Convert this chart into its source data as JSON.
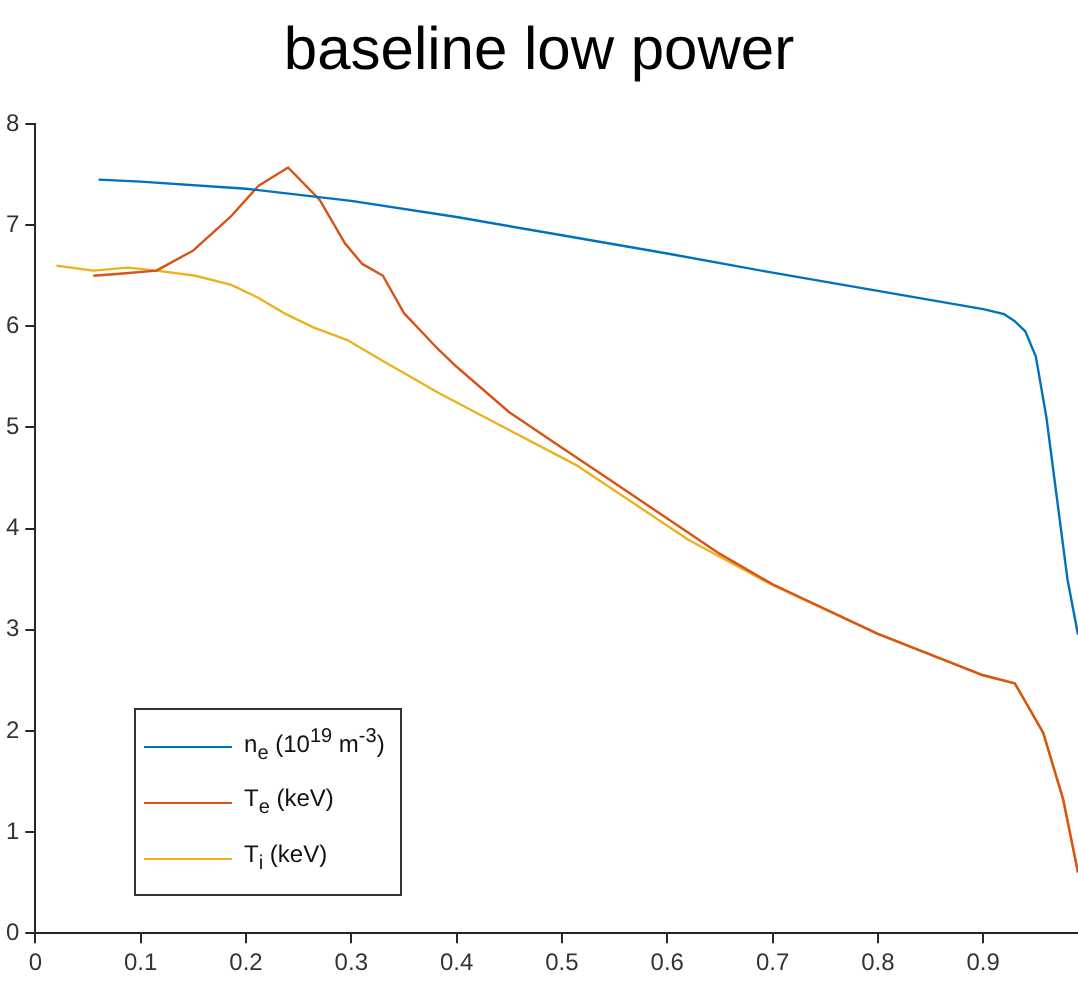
{
  "chart_data": {
    "type": "line",
    "title": "baseline low power",
    "xlim": [
      0,
      0.99
    ],
    "xticks": [
      0,
      0.1,
      0.2,
      0.3,
      0.4,
      0.5,
      0.6,
      0.7,
      0.8,
      0.9
    ],
    "ylim": [
      0,
      8
    ],
    "yticks": [
      0,
      1,
      2,
      3,
      4,
      5,
      6,
      7,
      8
    ],
    "grid": false,
    "legend": "bottom left",
    "line_style": "solid",
    "series": [
      {
        "name": "n$_{e}$ (10$^{19}$ m$^{-3}$)",
        "color": "#0072bd",
        "x": [
          0.06,
          0.1,
          0.2,
          0.3,
          0.4,
          0.5,
          0.6,
          0.7,
          0.8,
          0.9,
          0.92,
          0.93,
          0.94,
          0.95,
          0.96,
          0.97,
          0.98,
          0.99
        ],
        "values": [
          7.45,
          7.43,
          7.36,
          7.24,
          7.08,
          6.9,
          6.72,
          6.53,
          6.35,
          6.17,
          6.12,
          6.05,
          5.95,
          5.7,
          5.1,
          4.3,
          3.5,
          2.95
        ]
      },
      {
        "name": "T$_{e}$ (keV)",
        "color": "#d95319",
        "x": [
          0.055,
          0.08,
          0.115,
          0.15,
          0.186,
          0.212,
          0.24,
          0.27,
          0.294,
          0.31,
          0.33,
          0.35,
          0.38,
          0.4,
          0.45,
          0.5,
          0.55,
          0.6,
          0.65,
          0.7,
          0.8,
          0.9,
          0.93,
          0.957,
          0.976,
          0.99
        ],
        "values": [
          6.5,
          6.52,
          6.55,
          6.75,
          7.09,
          7.39,
          7.57,
          7.25,
          6.82,
          6.62,
          6.5,
          6.13,
          5.8,
          5.6,
          5.15,
          4.8,
          4.45,
          4.1,
          3.75,
          3.45,
          2.96,
          2.55,
          2.47,
          1.98,
          1.32,
          0.6
        ]
      },
      {
        "name": "T$_{i}$ (keV)",
        "color": "#edb120",
        "x": [
          0.02,
          0.055,
          0.088,
          0.115,
          0.152,
          0.186,
          0.212,
          0.238,
          0.264,
          0.297,
          0.328,
          0.383,
          0.449,
          0.515,
          0.62,
          0.7,
          0.8,
          0.9,
          0.93,
          0.957,
          0.976,
          0.99
        ],
        "values": [
          6.6,
          6.55,
          6.58,
          6.55,
          6.5,
          6.41,
          6.28,
          6.12,
          5.99,
          5.86,
          5.67,
          5.34,
          4.98,
          4.62,
          3.89,
          3.44,
          2.96,
          2.55,
          2.47,
          1.98,
          1.32,
          0.6
        ]
      }
    ]
  }
}
